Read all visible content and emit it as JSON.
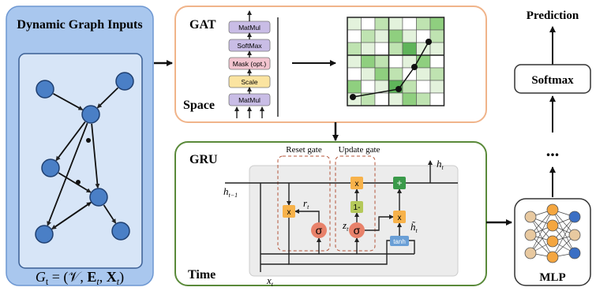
{
  "input": {
    "title": "Dynamic Graph Inputs",
    "formula": [
      "G",
      "t",
      " = (𝒱, ",
      "E",
      "t",
      ", ",
      "X",
      "t",
      ")"
    ]
  },
  "gat": {
    "title": "GAT",
    "subtitle": "Space",
    "blocks": [
      "MatMul",
      "SoftMax",
      "Mask (opt.)",
      "Scale",
      "MatMul"
    ]
  },
  "gru": {
    "title": "GRU",
    "subtitle": "Time",
    "reset_gate": "Reset gate",
    "update_gate": "Update gate",
    "labels": {
      "h_prev": [
        "h",
        "t−1"
      ],
      "h_t": [
        "h",
        "t"
      ],
      "r_t": [
        "r",
        "t"
      ],
      "z_t": [
        "z",
        "t"
      ],
      "h_tilde": [
        "h̃",
        "t"
      ],
      "x_t": [
        "x",
        "t"
      ]
    },
    "ops": {
      "mult": "x",
      "one_minus": "1-",
      "plus": "+",
      "sigma": "σ",
      "tanh": "tanh"
    }
  },
  "output": {
    "prediction": "Prediction",
    "softmax": "Softmax",
    "ellipsis": "...",
    "mlp": "MLP"
  }
}
